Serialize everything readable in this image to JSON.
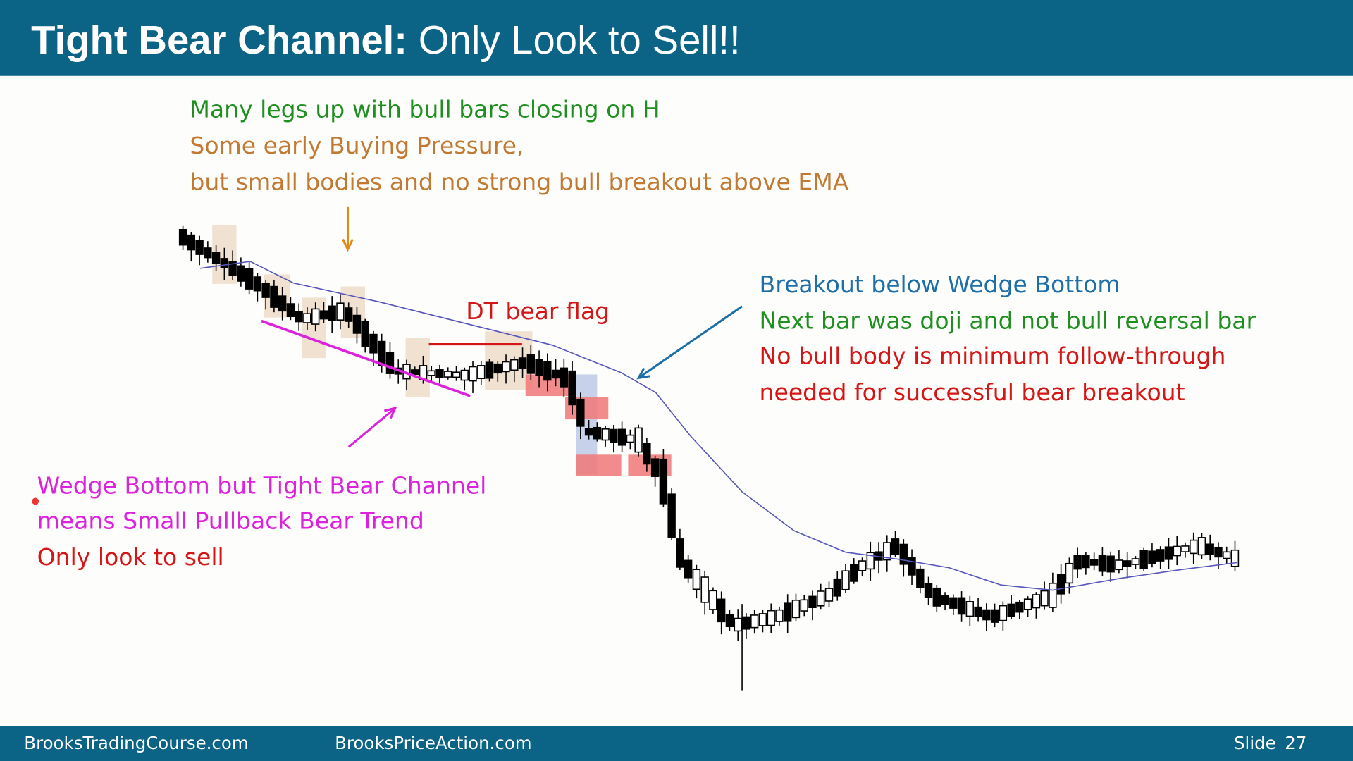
{
  "header": {
    "title_bold": "Tight Bear Channel:",
    "title_rest": "Only Look to Sell!!"
  },
  "annotations": {
    "top": [
      "Many legs up with bull bars closing on H",
      "Some early Buying Pressure,",
      "but small bodies and no strong bull breakout above EMA"
    ],
    "dt_flag": "DT bear flag",
    "right": [
      "Breakout below Wedge Bottom",
      "Next bar was doji and not bull reversal bar",
      "No bull body is minimum follow-through",
      "needed for successful bear breakout"
    ],
    "left": [
      "Wedge Bottom but Tight Bear Channel",
      "means Small Pullback Bear Trend",
      "Only look to sell"
    ]
  },
  "footer": {
    "left": "BrooksTradingCourse.com",
    "center": "BrooksPriceAction.com",
    "slide_label": "Slide",
    "slide_number": "27"
  }
}
